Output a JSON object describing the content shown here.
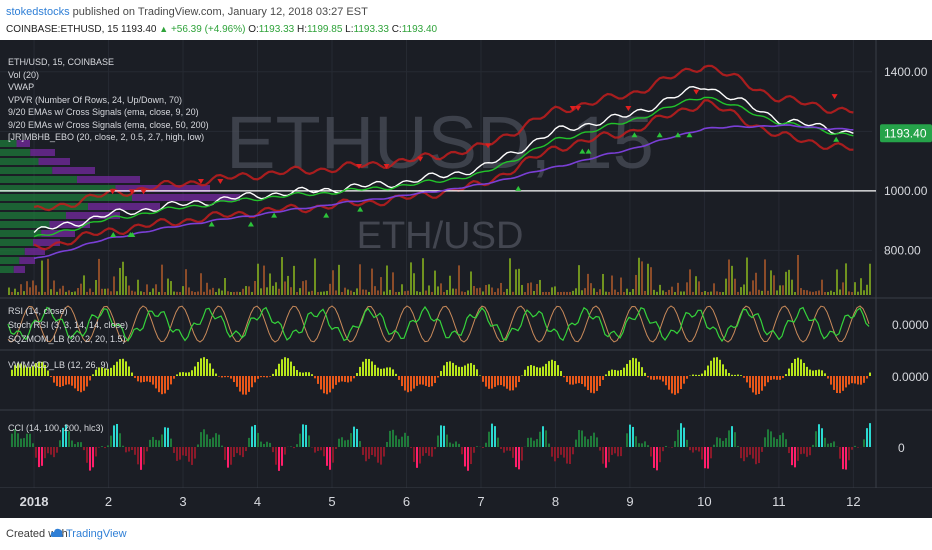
{
  "header": {
    "author": "stokedstocks",
    "published_text": "published on TradingView.com, January 12, 2018 03:27 EST",
    "symbol_label": "COINBASE:ETHUSD, 15",
    "last": "1193.40",
    "change": "+56.39 (+4.96%)",
    "o_label": "O:",
    "o_value": "1193.33",
    "h_label": "H:",
    "h_value": "1199.85",
    "l_label": "L:",
    "l_value": "1193.33",
    "c_label": "C:",
    "c_value": "1193.40"
  },
  "legend": {
    "items": [
      "ETH/USD, 15, COINBASE",
      "Vol (20)",
      "VWAP",
      "VPVR (Number Of Rows, 24, Up/Down, 70)",
      "9/20 EMAs w/ Cross Signals (ema, close, 9, 20)",
      "9/20 EMAs w/ Cross Signals (ema, close, 50, 200)",
      "[JR]MBHB_EBO (20, close, 2, 0.5, 2.7, high, low)"
    ]
  },
  "watermark": {
    "main": "ETHUSD, 15",
    "sub": "ETH/USD"
  },
  "panes": {
    "rsi_label": "RSI (14, close)",
    "stoch_label": "Stoch RSI (3, 3, 14, 14, close)",
    "sqz_label": "SQZMOM_LB (20, 2, 20, 1.5)",
    "vwmacd_label": "VWMACD_LB (12, 26, 9)",
    "cci_label": "CCI (14, 100, 200, hlc3)"
  },
  "price_axis": {
    "ticks": [
      "1400.00",
      "1000.00",
      "800.00"
    ],
    "current": "1193.40",
    "rsi_value": "0.0000",
    "vwmacd_value": "0.0000",
    "cci_value": "0"
  },
  "time_axis": {
    "labels": [
      "2018",
      "2",
      "3",
      "4",
      "5",
      "6",
      "7",
      "8",
      "9",
      "10",
      "11",
      "12"
    ]
  },
  "footer": {
    "created": "Created with",
    "brand": "TradingView"
  },
  "colors": {
    "background": "#1b1e25",
    "price_line": "#ffffff",
    "ema_fast": "#22c32a",
    "ema_slow": "#7a3fd6",
    "band": "#c21d1d",
    "current_tag": "#26a34a",
    "cci_up": "#2bd9d1",
    "cci_down": "#ff1f6b"
  },
  "chart_data": {
    "type": "line",
    "title": "",
    "xlabel": "",
    "ylabel": "",
    "x": [
      "2018",
      "2",
      "3",
      "4",
      "5",
      "6",
      "7",
      "8",
      "9",
      "10",
      "11",
      "12"
    ],
    "ylim": [
      650,
      1480
    ],
    "hline": 1000,
    "series": [
      {
        "values": [
          860,
          920,
          955,
          985,
          1005,
          1030,
          1075,
          1200,
          1255,
          1355,
          1240,
          1193.4
        ]
      },
      {
        "values": [
          840,
          905,
          945,
          975,
          995,
          1018,
          1055,
          1170,
          1235,
          1320,
          1230,
          1185
        ]
      },
      {
        "values": [
          770,
          840,
          885,
          920,
          955,
          985,
          1020,
          1080,
          1140,
          1210,
          1220,
          1205
        ]
      }
    ]
  }
}
